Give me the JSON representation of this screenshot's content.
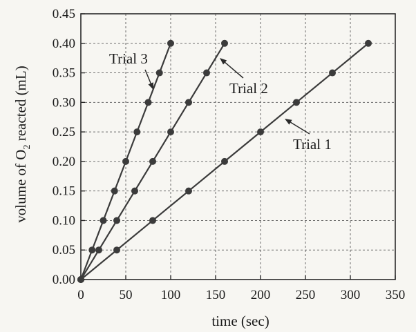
{
  "chart_data": {
    "type": "line",
    "title": "",
    "xlabel": "time (sec)",
    "ylabel_prefix": "volume of O",
    "ylabel_subscript": "2",
    "ylabel_suffix": " reacted (mL)",
    "xlim": [
      0,
      350
    ],
    "ylim": [
      0,
      0.45
    ],
    "xticks": [
      "0",
      "50",
      "100",
      "150",
      "200",
      "250",
      "300",
      "350"
    ],
    "yticks": [
      "0.00",
      "0.05",
      "0.10",
      "0.15",
      "0.20",
      "0.25",
      "0.30",
      "0.35",
      "0.40",
      "0.45"
    ],
    "grid": true,
    "legend": "none (series labeled directly with arrows)",
    "series": [
      {
        "name": "Trial 1",
        "x": [
          0,
          40,
          80,
          120,
          160,
          200,
          240,
          280,
          320
        ],
        "y": [
          0.0,
          0.05,
          0.1,
          0.15,
          0.2,
          0.25,
          0.3,
          0.35,
          0.4
        ]
      },
      {
        "name": "Trial 2",
        "x": [
          0,
          20,
          40,
          60,
          80,
          100,
          120,
          140,
          160
        ],
        "y": [
          0.0,
          0.05,
          0.1,
          0.15,
          0.2,
          0.25,
          0.3,
          0.35,
          0.4
        ]
      },
      {
        "name": "Trial 3",
        "x": [
          0,
          12.5,
          25,
          37.5,
          50,
          62.5,
          75,
          87.5,
          100
        ],
        "y": [
          0.0,
          0.05,
          0.1,
          0.15,
          0.2,
          0.25,
          0.3,
          0.35,
          0.4
        ]
      }
    ]
  }
}
